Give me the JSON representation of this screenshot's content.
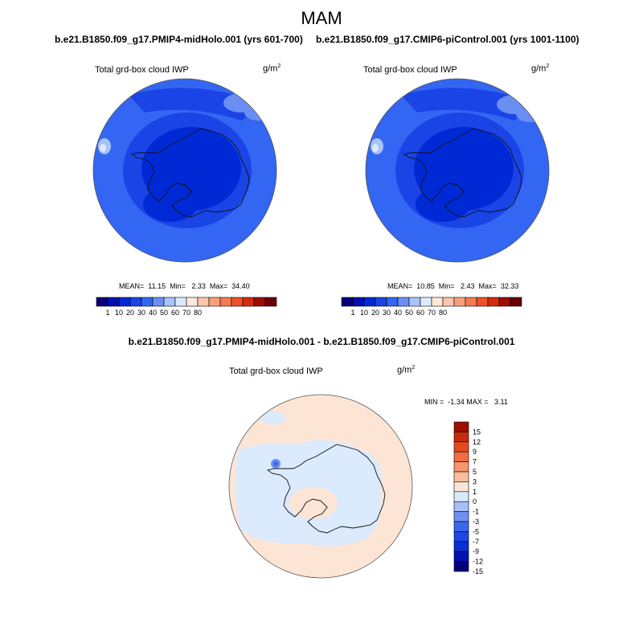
{
  "season": "MAM",
  "panels": [
    {
      "case_title": "b.e21.B1850.f09_g17.PMIP4-midHolo.001 (yrs 601-700)",
      "variable": "Total grd-box cloud IWP",
      "units_base": "g/m",
      "units_exp": "2",
      "stats": "MEAN=  11.15  Min=   2.33  Max=  34.40"
    },
    {
      "case_title": "b.e21.B1850.f09_g17.CMIP6-piControl.001 (yrs 1001-1100)",
      "variable": "Total grd-box cloud IWP",
      "units_base": "g/m",
      "units_exp": "2",
      "stats": "MEAN=  10.85  Min=   2.43  Max=  32.33"
    }
  ],
  "diff": {
    "title": "b.e21.B1850.f09_g17.PMIP4-midHolo.001 - b.e21.B1850.f09_g17.CMIP6-piControl.001",
    "variable": "Total grd-box cloud IWP",
    "units_base": "g/m",
    "units_exp": "2",
    "stats": "MIN =  -1.34 MAX =   3.11"
  },
  "colorbar_abs": {
    "colors": [
      "#08007a",
      "#0010b3",
      "#0029d6",
      "#1a44e6",
      "#3366f2",
      "#6b8ef5",
      "#a8c2fa",
      "#dceafd",
      "#fde8da",
      "#fbc6ab",
      "#f8a07e",
      "#f47a52",
      "#ec5228",
      "#d42a0f",
      "#a00d00",
      "#6b0000"
    ],
    "labels": [
      "1",
      "10",
      "20",
      "30",
      "40",
      "50",
      "60",
      "70",
      "80"
    ]
  },
  "colorbar_diff": {
    "colors": [
      "#07007a",
      "#0012b0",
      "#0a2ed6",
      "#1e48e4",
      "#3b67ee",
      "#6f8ff2",
      "#a6c0f7",
      "#dbeafc",
      "#fde5d6",
      "#fbbd9c",
      "#f8956c",
      "#f26c40",
      "#e54a1f",
      "#c82a0c",
      "#9b1000"
    ],
    "labels": [
      "15",
      "12",
      "9",
      "7",
      "5",
      "3",
      "1",
      "0",
      "-1",
      "-3",
      "-5",
      "-7",
      "-9",
      "-12",
      "-15"
    ]
  }
}
